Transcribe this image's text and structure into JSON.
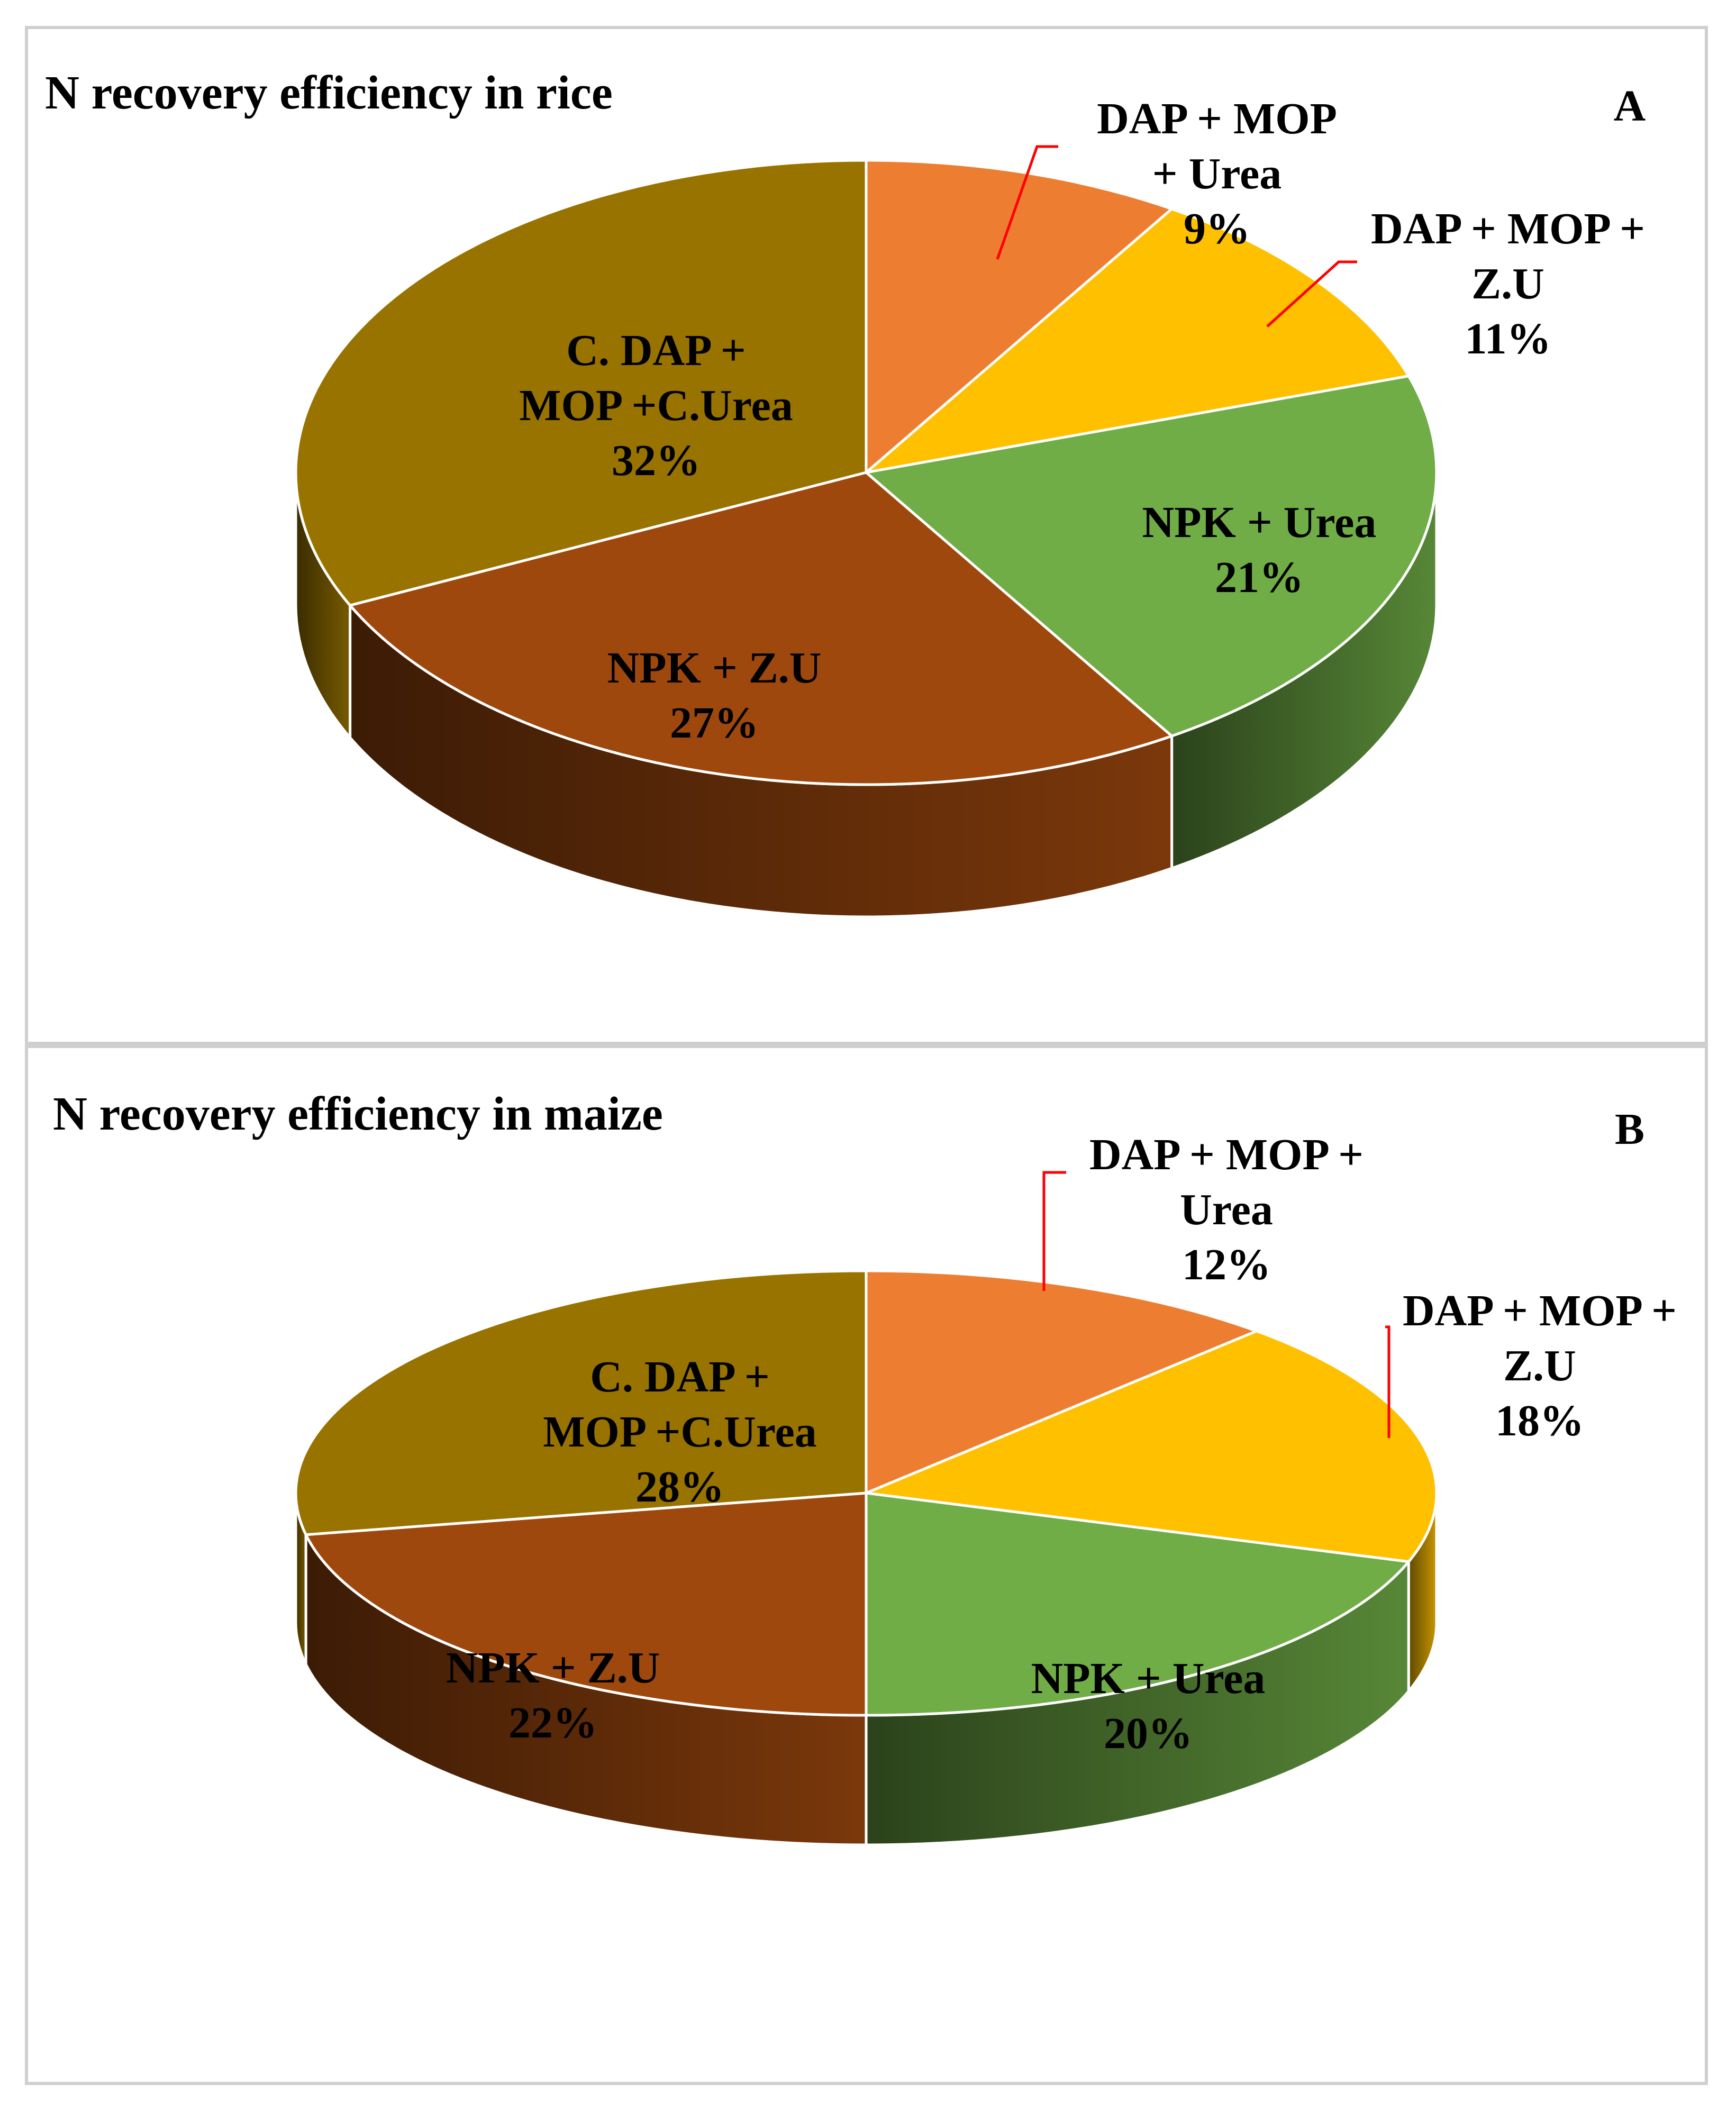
{
  "chart_data": [
    {
      "type": "pie",
      "panel": "A",
      "title": "N recovery efficiency in rice",
      "slices": [
        {
          "label": [
            "DAP + MOP",
            "+ Urea"
          ],
          "percent_label": "9%",
          "value": 9,
          "color": "#ED7D31"
        },
        {
          "label": [
            "DAP + MOP +",
            "Z.U"
          ],
          "percent_label": "11%",
          "value": 11,
          "color": "#FFC000"
        },
        {
          "label": [
            "NPK + Urea"
          ],
          "percent_label": "21%",
          "value": 21,
          "color": "#70AD47"
        },
        {
          "label": [
            "NPK + Z.U"
          ],
          "percent_label": "27%",
          "value": 27,
          "color": "#9E480E"
        },
        {
          "label": [
            "C. DAP +",
            "MOP +C.Urea"
          ],
          "percent_label": "32%",
          "value": 32,
          "color": "#997300"
        }
      ]
    },
    {
      "type": "pie",
      "panel": "B",
      "title": "N recovery efficiency in maize",
      "slices": [
        {
          "label": [
            "DAP + MOP +",
            "Urea"
          ],
          "percent_label": "12%",
          "value": 12,
          "color": "#ED7D31"
        },
        {
          "label": [
            "DAP + MOP +",
            "Z.U"
          ],
          "percent_label": "18%",
          "value": 18,
          "color": "#FFC000"
        },
        {
          "label": [
            "NPK + Urea"
          ],
          "percent_label": "20%",
          "value": 20,
          "color": "#70AD47"
        },
        {
          "label": [
            "NPK + Z.U"
          ],
          "percent_label": "22%",
          "value": 22,
          "color": "#9E480E"
        },
        {
          "label": [
            "C. DAP +",
            "MOP +C.Urea"
          ],
          "percent_label": "28%",
          "value": 28,
          "color": "#997300"
        }
      ]
    }
  ]
}
